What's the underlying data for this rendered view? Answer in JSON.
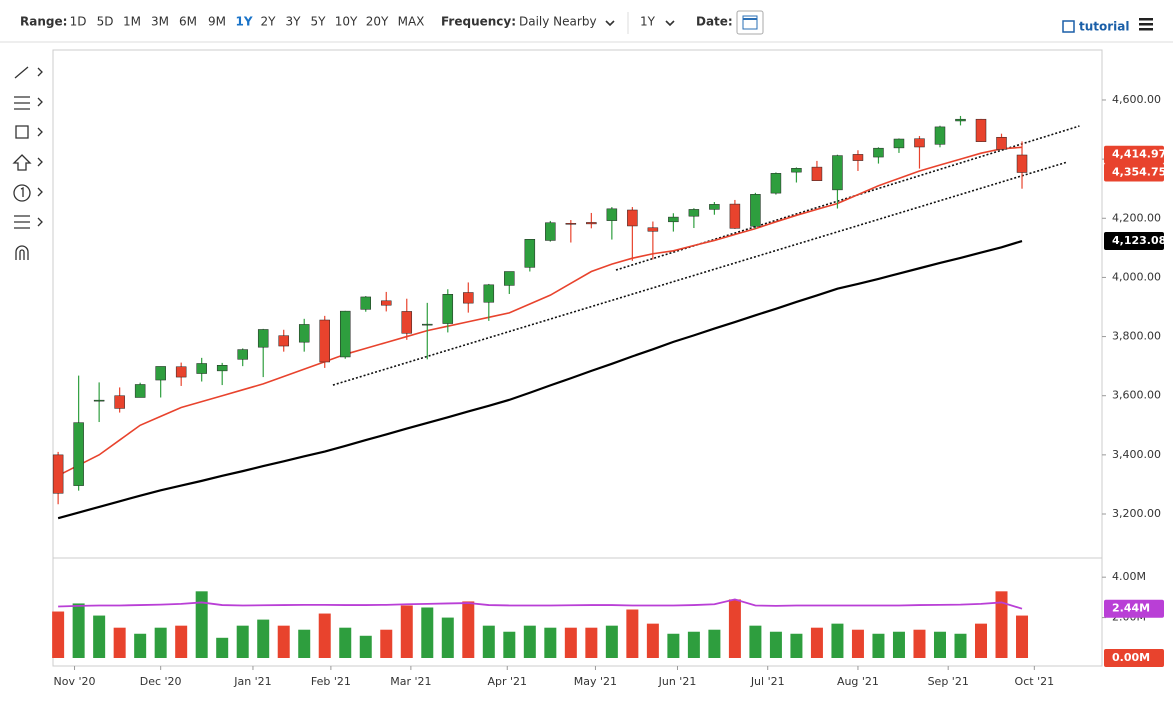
{
  "header": {
    "range_label": "Range:",
    "ranges": [
      "1D",
      "5D",
      "1M",
      "3M",
      "6M",
      "9M",
      "1Y",
      "2Y",
      "3Y",
      "5Y",
      "10Y",
      "20Y",
      "MAX"
    ],
    "active_range_index": 6,
    "active_color": "#1a73c8",
    "frequency_label": "Frequency:",
    "frequency": "Daily Nearby",
    "period": "1Y",
    "date_label": "Date:",
    "tutorial": "tutorial"
  },
  "chart_data": {
    "type": "candlestick",
    "xlim": [
      -0.25,
      50.9
    ],
    "xticks": [
      {
        "value": 0.8,
        "label": "Nov '20"
      },
      {
        "value": 5.0,
        "label": "Dec '20"
      },
      {
        "value": 9.5,
        "label": "Jan '21"
      },
      {
        "value": 13.3,
        "label": "Feb '21"
      },
      {
        "value": 17.2,
        "label": "Mar '21"
      },
      {
        "value": 21.9,
        "label": "Apr '21"
      },
      {
        "value": 26.2,
        "label": "May '21"
      },
      {
        "value": 30.2,
        "label": "Jun '21"
      },
      {
        "value": 34.6,
        "label": "Jul '21"
      },
      {
        "value": 39.0,
        "label": "Aug '21"
      },
      {
        "value": 43.4,
        "label": "Sep '21"
      },
      {
        "value": 47.6,
        "label": "Oct '21"
      }
    ],
    "ylim": [
      3058,
      4769
    ],
    "yticks": [
      {
        "value": 3200,
        "label": "3,200.00"
      },
      {
        "value": 3400,
        "label": "3,400.00"
      },
      {
        "value": 3600,
        "label": "3,600.00"
      },
      {
        "value": 3800,
        "label": "3,800.00"
      },
      {
        "value": 4000,
        "label": "4,000.00"
      },
      {
        "value": 4200,
        "label": "4,200.00"
      },
      {
        "value": 4400,
        "label": "4,400.00"
      },
      {
        "value": 4600,
        "label": "4,600.00"
      }
    ],
    "open": [
      3400,
      3296,
      3583,
      3600,
      3594,
      3653,
      3698,
      3675,
      3684,
      3723,
      3764,
      3803,
      3781,
      3856,
      3731,
      3892,
      3921,
      3885,
      3842,
      3844,
      3949,
      3916,
      3973,
      4034,
      4125,
      4183,
      4186,
      4192,
      4228,
      4168,
      4188,
      4207,
      4230,
      4248,
      4173,
      4285,
      4356,
      4373,
      4296,
      4416,
      4407,
      4438,
      4469,
      4450,
      4529,
      4535,
      4474,
      4414
    ],
    "high": [
      3410,
      3668,
      3645,
      3628,
      3644,
      3699,
      3712,
      3728,
      3711,
      3760,
      3826,
      3823,
      3860,
      3870,
      3887,
      3937,
      3951,
      3928,
      3914,
      3960,
      3983,
      3978,
      4020,
      4129,
      4191,
      4194,
      4218,
      4238,
      4238,
      4189,
      4217,
      4234,
      4255,
      4262,
      4286,
      4355,
      4372,
      4394,
      4415,
      4430,
      4440,
      4470,
      4478,
      4513,
      4546,
      4536,
      4486,
      4460
    ],
    "low": [
      3233,
      3279,
      3511,
      3543,
      3594,
      3594,
      3633,
      3648,
      3636,
      3700,
      3663,
      3749,
      3749,
      3694,
      3725,
      3884,
      3885,
      3789,
      3723,
      3814,
      3881,
      3853,
      3944,
      4020,
      4121,
      4118,
      4166,
      4128,
      4056,
      4061,
      4155,
      4167,
      4212,
      4164,
      4165,
      4280,
      4321,
      4327,
      4233,
      4360,
      4385,
      4421,
      4368,
      4440,
      4514,
      4458,
      4435,
      4300
    ],
    "close": [
      3270,
      3509,
      3585,
      3557,
      3638,
      3699,
      3663,
      3709,
      3703,
      3756,
      3824,
      3768,
      3841,
      3714,
      3886,
      3934,
      3906,
      3811,
      3842,
      3943,
      3913,
      3975,
      4020,
      4129,
      4185,
      4180,
      4181,
      4232,
      4174,
      4156,
      4204,
      4230,
      4247,
      4166,
      4281,
      4352,
      4369,
      4327,
      4412,
      4395,
      4437,
      4468,
      4441,
      4509,
      4535,
      4459,
      4433,
      4354.75
    ],
    "up_color": "#2e9e3e",
    "down_color": "#e8432d",
    "overlays": [
      {
        "color": "#e8432d",
        "values": [
          3330,
          3365,
          3400,
          3450,
          3500,
          3530,
          3560,
          3580,
          3600,
          3620,
          3640,
          3665,
          3690,
          3715,
          3740,
          3760,
          3780,
          3800,
          3820,
          3835,
          3850,
          3865,
          3880,
          3910,
          3940,
          3980,
          4020,
          4045,
          4065,
          4080,
          4090,
          4108,
          4125,
          4145,
          4165,
          4188,
          4210,
          4230,
          4250,
          4280,
          4310,
          4335,
          4360,
          4380,
          4400,
          4420,
          4435,
          4440
        ]
      },
      {
        "color": "#000000",
        "values": [
          3186,
          3205,
          3224,
          3243,
          3262,
          3280,
          3296,
          3312,
          3329,
          3345,
          3362,
          3378,
          3395,
          3411,
          3430,
          3450,
          3469,
          3489,
          3508,
          3527,
          3547,
          3566,
          3586,
          3610,
          3635,
          3659,
          3684,
          3708,
          3733,
          3757,
          3782,
          3804,
          3827,
          3849,
          3872,
          3894,
          3917,
          3939,
          3962,
          3978,
          3995,
          4013,
          4031,
          4049,
          4066,
          4084,
          4102,
          4123.08
        ]
      }
    ],
    "trendlines": [
      {
        "x": [
          27.2,
          49.8
        ],
        "y": [
          4025,
          4512
        ]
      },
      {
        "x": [
          13.4,
          49.2
        ],
        "y": [
          3636,
          4390
        ]
      }
    ],
    "last_labels": [
      {
        "value": 4414.97,
        "label": "4,414.97",
        "color": "#e8432d"
      },
      {
        "value": 4354.75,
        "label": "4,354.75",
        "color": "#e8432d"
      },
      {
        "value": 4123.08,
        "label": "4,123.08",
        "color": "#000000"
      }
    ],
    "volume": {
      "ylim": [
        0,
        4.85
      ],
      "yticks": [
        {
          "value": 4,
          "label": "4.00M"
        },
        {
          "value": 2,
          "label": "2.00M"
        }
      ],
      "values": [
        2.3,
        2.7,
        2.1,
        1.5,
        1.2,
        1.5,
        1.6,
        3.3,
        1.0,
        1.6,
        1.9,
        1.6,
        1.4,
        2.2,
        1.5,
        1.1,
        1.4,
        2.6,
        2.5,
        2.0,
        2.8,
        1.6,
        1.3,
        1.6,
        1.5,
        1.5,
        1.5,
        1.6,
        2.4,
        1.7,
        1.2,
        1.3,
        1.4,
        2.9,
        1.6,
        1.3,
        1.2,
        1.5,
        1.7,
        1.4,
        1.2,
        1.3,
        1.4,
        1.3,
        1.2,
        1.7,
        3.3,
        2.1
      ],
      "avg": {
        "color": "#b93fd6",
        "values": [
          2.55,
          2.58,
          2.6,
          2.6,
          2.62,
          2.64,
          2.68,
          2.75,
          2.62,
          2.6,
          2.61,
          2.62,
          2.63,
          2.63,
          2.62,
          2.62,
          2.63,
          2.66,
          2.68,
          2.7,
          2.72,
          2.62,
          2.6,
          2.6,
          2.6,
          2.61,
          2.62,
          2.62,
          2.6,
          2.6,
          2.6,
          2.62,
          2.66,
          2.9,
          2.6,
          2.58,
          2.6,
          2.6,
          2.6,
          2.6,
          2.6,
          2.6,
          2.62,
          2.63,
          2.64,
          2.68,
          2.75,
          2.44
        ]
      },
      "last_labels": [
        {
          "value": 2.44,
          "label": "2.44M",
          "color": "#b93fd6"
        },
        {
          "value": 0,
          "label": "0.00M",
          "color": "#e8432d"
        }
      ]
    }
  }
}
